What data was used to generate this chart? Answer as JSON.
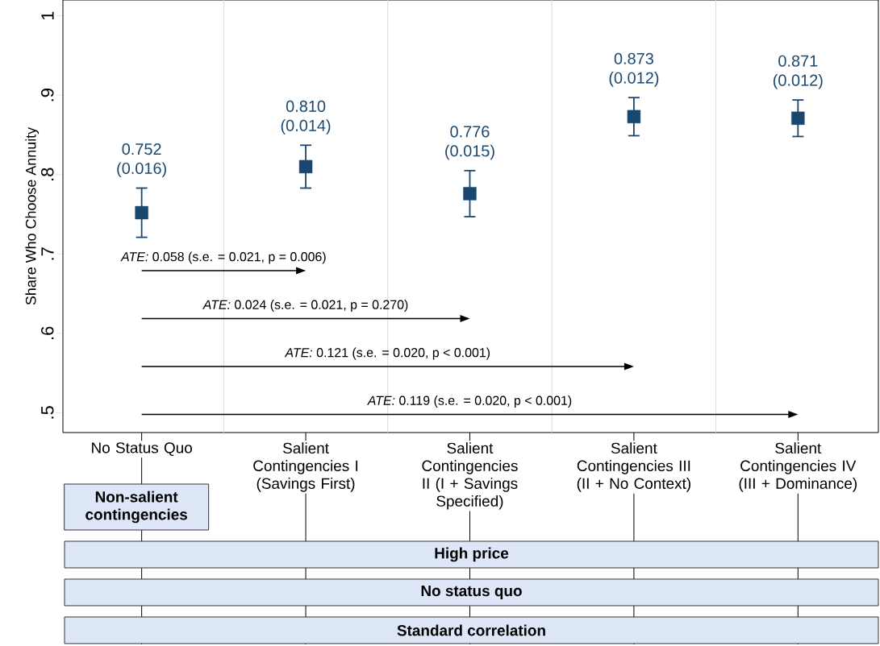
{
  "chart_data": {
    "type": "scatter",
    "ylabel": "Share Who Choose Annuity",
    "categories": [
      "No Status Quo",
      "Salient Contingencies I (Savings First)",
      "Salient Contingencies II (I + Savings Specified)",
      "Salient Contingencies III (II + No Context)",
      "Salient Contingencies IV (III + Dominance)"
    ],
    "values": [
      0.752,
      0.81,
      0.776,
      0.873,
      0.871
    ],
    "errors": [
      0.031,
      0.027,
      0.029,
      0.024,
      0.023
    ],
    "value_labels": [
      "0.752 (0.016)",
      "0.810 (0.014)",
      "0.776 (0.015)",
      "0.873 (0.012)",
      "0.871 (0.012)"
    ],
    "color": "#1a476f",
    "marker": "square",
    "grid": "x",
    "ylim": [
      0.475,
      1.02
    ],
    "yticks": [
      {
        "value": 0.5,
        "label": ".5"
      },
      {
        "value": 0.6,
        "label": ".6"
      },
      {
        "value": 0.7,
        "label": ".7"
      },
      {
        "value": 0.8,
        "label": ".8"
      },
      {
        "value": 0.9,
        "label": ".9"
      },
      {
        "value": 1,
        "label": "1"
      }
    ],
    "annotations": [
      "*ATE:* 0.058 (s.e. = 0.021, p = 0.006)",
      "*ATE:* 0.024 (s.e. = 0.021, p = 0.270)",
      "*ATE:* 0.121 (s.e. = 0.020, p < 0.001)",
      "*ATE:* 0.119 (s.e. = 0.020, p < 0.001)",
      "Non-salient contingencies",
      "High price",
      "No status quo",
      "Standard correlation"
    ]
  }
}
